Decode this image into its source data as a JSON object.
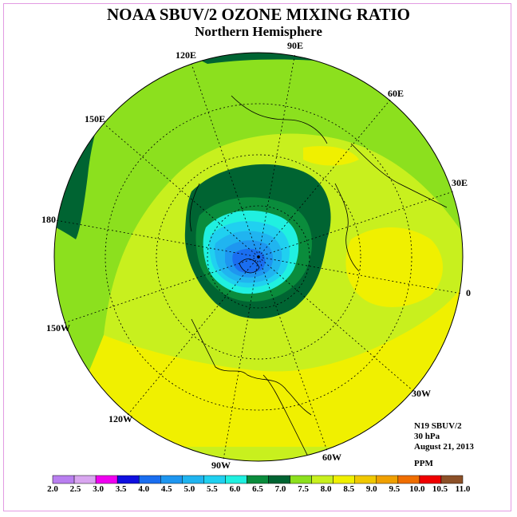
{
  "title": "NOAA SBUV/2 OZONE MIXING RATIO",
  "subtitle": "Northern Hemisphere",
  "longitude_labels": [
    "90E",
    "60E",
    "30E",
    "0",
    "30W",
    "60W",
    "90W",
    "120W",
    "150W",
    "180",
    "150E",
    "120E"
  ],
  "info": {
    "instrument": "N19 SBUV/2",
    "level": "30 hPa",
    "date": "August 21, 2013",
    "units": "PPM"
  },
  "colorbar": {
    "ticks": [
      "2.0",
      "2.5",
      "3.0",
      "3.5",
      "4.0",
      "4.5",
      "5.0",
      "5.5",
      "6.0",
      "6.5",
      "7.0",
      "7.5",
      "8.0",
      "8.5",
      "9.0",
      "9.5",
      "10.0",
      "10.5",
      "11.0"
    ],
    "colors": [
      "#b97ff0",
      "#d9a6f0",
      "#f000f0",
      "#1010e0",
      "#1a6ef0",
      "#1e96f0",
      "#20b4f0",
      "#20d0f0",
      "#20f0e0",
      "#0a8c3c",
      "#006432",
      "#8ce01e",
      "#c8f01e",
      "#f0f000",
      "#f0c800",
      "#f0a000",
      "#f06e00",
      "#f00000",
      "#8c5028"
    ]
  }
}
